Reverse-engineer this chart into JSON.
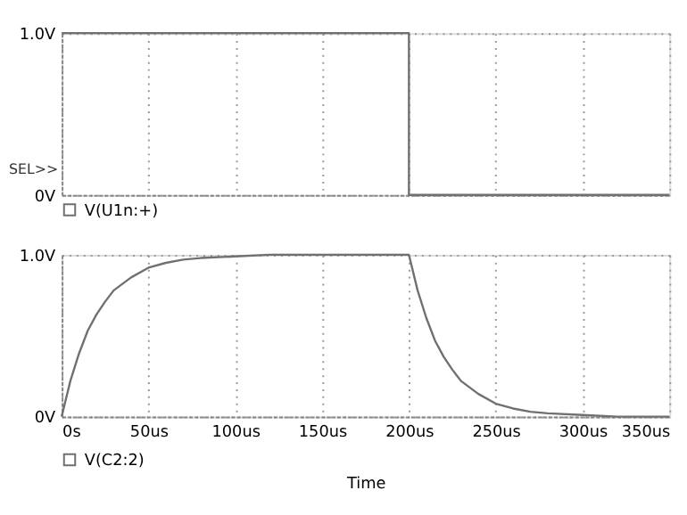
{
  "chart_data": [
    {
      "type": "step",
      "x": [
        0,
        200,
        350
      ],
      "xlim": [
        0,
        350
      ],
      "ylim": [
        0,
        1
      ],
      "yticks": [
        {
          "value": 0,
          "label": "0V"
        },
        {
          "value": 1,
          "label": "1.0V"
        }
      ],
      "series": [
        {
          "name": "V(U1n:+)",
          "color": "#707070",
          "values": [
            1,
            0,
            0
          ]
        }
      ],
      "annotations": [
        "SEL>>"
      ],
      "tick_labels": "y",
      "grid": true,
      "legend": "bottom left"
    },
    {
      "type": "line",
      "x": [
        0,
        5,
        10,
        15,
        20,
        25,
        30,
        40,
        50,
        60,
        70,
        80,
        100,
        120,
        200,
        205,
        210,
        215,
        220,
        225,
        230,
        240,
        250,
        260,
        270,
        280,
        300,
        320,
        350
      ],
      "xlim": [
        0,
        350
      ],
      "xticks": [
        {
          "value": 0,
          "label": "0s"
        },
        {
          "value": 50,
          "label": "50us"
        },
        {
          "value": 100,
          "label": "100us"
        },
        {
          "value": 150,
          "label": "150us"
        },
        {
          "value": 200,
          "label": "200us"
        },
        {
          "value": 250,
          "label": "250us"
        },
        {
          "value": 300,
          "label": "300us"
        },
        {
          "value": 350,
          "label": "350us"
        }
      ],
      "ylim": [
        0,
        1
      ],
      "yticks": [
        {
          "value": 0,
          "label": "0V"
        },
        {
          "value": 1,
          "label": "1.0V"
        }
      ],
      "xlabel": "Time",
      "series": [
        {
          "name": "V(C2:2)",
          "color": "#707070",
          "values": [
            0,
            0.22,
            0.39,
            0.53,
            0.63,
            0.71,
            0.78,
            0.86,
            0.92,
            0.95,
            0.97,
            0.98,
            0.99,
            1.0,
            1.0,
            0.78,
            0.61,
            0.47,
            0.37,
            0.29,
            0.22,
            0.14,
            0.08,
            0.05,
            0.03,
            0.02,
            0.01,
            0,
            0
          ]
        }
      ],
      "grid": true,
      "legend": "bottom left"
    }
  ]
}
